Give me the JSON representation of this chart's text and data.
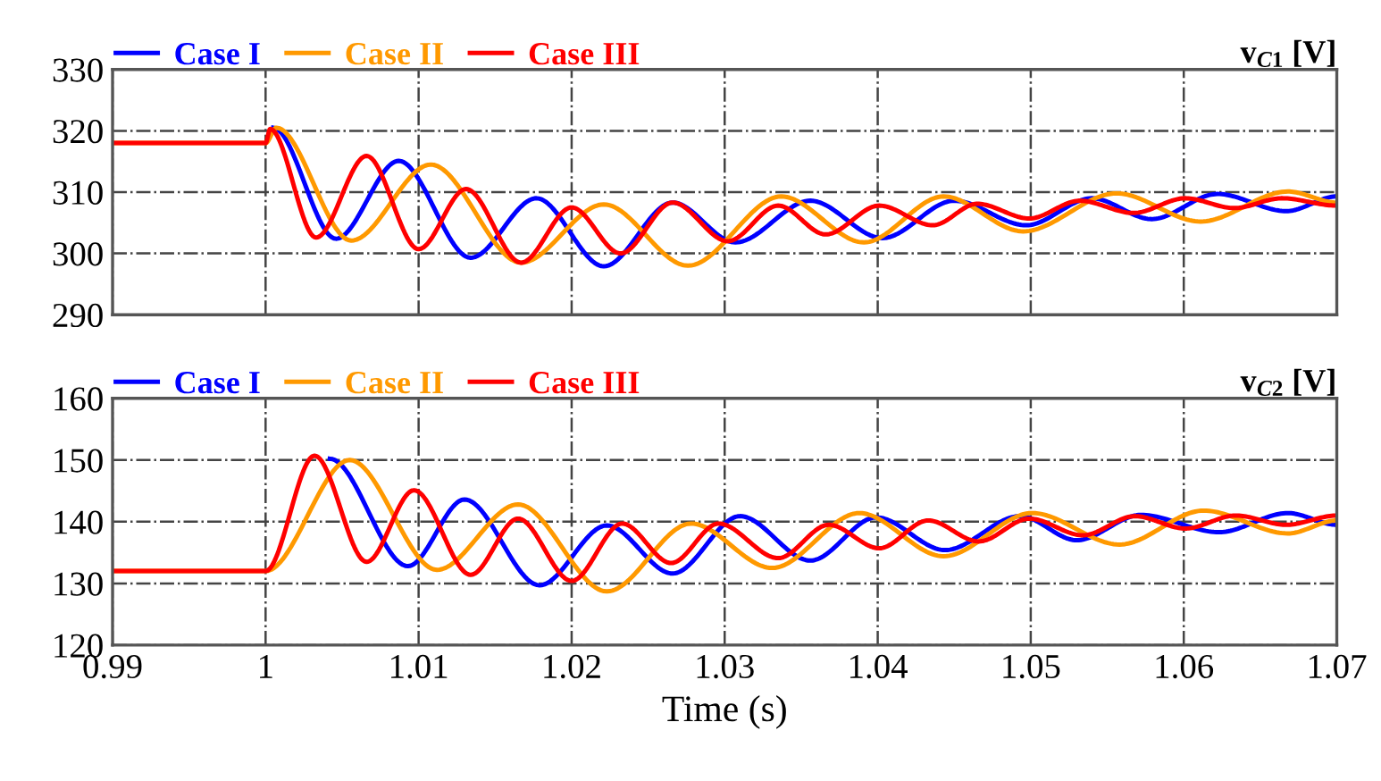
{
  "chart_data": [
    {
      "type": "line",
      "title": "v$_{C1}$ [V]",
      "xlim": [
        0.99,
        1.07
      ],
      "xticks": [
        0.99,
        1,
        1.01,
        1.02,
        1.03,
        1.04,
        1.05,
        1.06,
        1.07
      ],
      "ylim": [
        290,
        330
      ],
      "yticks": [
        290,
        300,
        310,
        320,
        330
      ],
      "grid": true,
      "legend": "top left",
      "tick_labels": "y",
      "line_style": "solid",
      "series": [
        {
          "name": "Case I",
          "color": "#0000ff",
          "x": [
            1.0005,
            1.0046,
            1.0087,
            1.0134,
            1.0177,
            1.0221,
            1.0266,
            1.0307,
            1.0356,
            1.0403,
            1.045,
            1.0497,
            1.054,
            1.0579,
            1.0622,
            1.0667,
            1.07
          ],
          "values": [
            320.5,
            302.4,
            315.1,
            299.3,
            309,
            297.9,
            308.3,
            301.8,
            308.6,
            302.5,
            308.6,
            304.6,
            309,
            305.6,
            309.7,
            306.9,
            309.3
          ]
        },
        {
          "name": "Case II",
          "color": "#ff9900",
          "x": [
            0.99,
            1.0,
            1.0007,
            1.0056,
            1.0108,
            1.0167,
            1.0221,
            1.0276,
            1.0337,
            1.0391,
            1.0443,
            1.0495,
            1.0556,
            1.0611,
            1.0668,
            1.07
          ],
          "values": [
            318,
            318,
            320.5,
            302.1,
            314.5,
            298.5,
            308,
            298,
            309.3,
            301.8,
            309.3,
            303.6,
            309.8,
            305.2,
            310.1,
            308.3
          ]
        },
        {
          "name": "Case III",
          "color": "#ff0000",
          "x": [
            0.99,
            1.0,
            1.0003,
            1.0033,
            1.0066,
            1.01,
            1.0131,
            1.0167,
            1.02,
            1.0232,
            1.0266,
            1.0302,
            1.0335,
            1.0366,
            1.0401,
            1.0436,
            1.0465,
            1.0499,
            1.0532,
            1.0567,
            1.0601,
            1.0633,
            1.0664,
            1.07
          ],
          "values": [
            318,
            318,
            320.3,
            302.6,
            315.9,
            300.7,
            310.5,
            298.5,
            307.5,
            300,
            308.3,
            302,
            307.8,
            303.1,
            307.8,
            304.6,
            308.1,
            305.7,
            308.6,
            306.6,
            309,
            307.4,
            309,
            307.8
          ]
        }
      ]
    },
    {
      "type": "line",
      "title": "v$_{C2}$ [V]",
      "xlabel": "Time (s)",
      "xlim": [
        0.99,
        1.07
      ],
      "xticks": [
        0.99,
        1,
        1.01,
        1.02,
        1.03,
        1.04,
        1.05,
        1.06,
        1.07
      ],
      "ylim": [
        120,
        160
      ],
      "yticks": [
        120,
        130,
        140,
        150,
        160
      ],
      "grid": true,
      "legend": "top left",
      "line_style": "solid",
      "series": [
        {
          "name": "Case I",
          "color": "#0000ff",
          "x": [
            1.0042,
            1.0093,
            1.013,
            1.0179,
            1.0223,
            1.0266,
            1.031,
            1.0356,
            1.0399,
            1.0444,
            1.0493,
            1.053,
            1.0572,
            1.0623,
            1.0668,
            1.07
          ],
          "values": [
            150.2,
            132.8,
            143.6,
            129.7,
            139.4,
            131.6,
            140.9,
            133.7,
            140.7,
            135.4,
            140.9,
            137,
            141.1,
            138.3,
            141.4,
            139.5
          ]
        },
        {
          "name": "Case II",
          "color": "#ff9900",
          "x": [
            0.99,
            1.0,
            1.0055,
            1.0112,
            1.0165,
            1.0223,
            1.0278,
            1.0331,
            1.0388,
            1.0443,
            1.0501,
            1.0558,
            1.0613,
            1.0668,
            1.07
          ],
          "values": [
            132,
            132,
            150,
            132.2,
            142.8,
            128.7,
            139.7,
            132.5,
            141.4,
            134.4,
            141.4,
            136.3,
            141.8,
            138.1,
            140.2
          ]
        },
        {
          "name": "Case III",
          "color": "#ff0000",
          "x": [
            0.99,
            1.0,
            1.0032,
            1.0066,
            1.0097,
            1.0134,
            1.0165,
            1.02,
            1.0233,
            1.0265,
            1.0296,
            1.0335,
            1.0368,
            1.0401,
            1.0433,
            1.0466,
            1.0499,
            1.0534,
            1.0568,
            1.0601,
            1.0634,
            1.0667,
            1.07
          ],
          "values": [
            132,
            132,
            150.7,
            133.5,
            145.1,
            131.4,
            140.5,
            130.4,
            139.7,
            133.3,
            139.7,
            134.1,
            139.5,
            135.7,
            140.2,
            136.8,
            140.5,
            137.8,
            140.9,
            138.9,
            141,
            139.5,
            141
          ]
        }
      ]
    }
  ]
}
